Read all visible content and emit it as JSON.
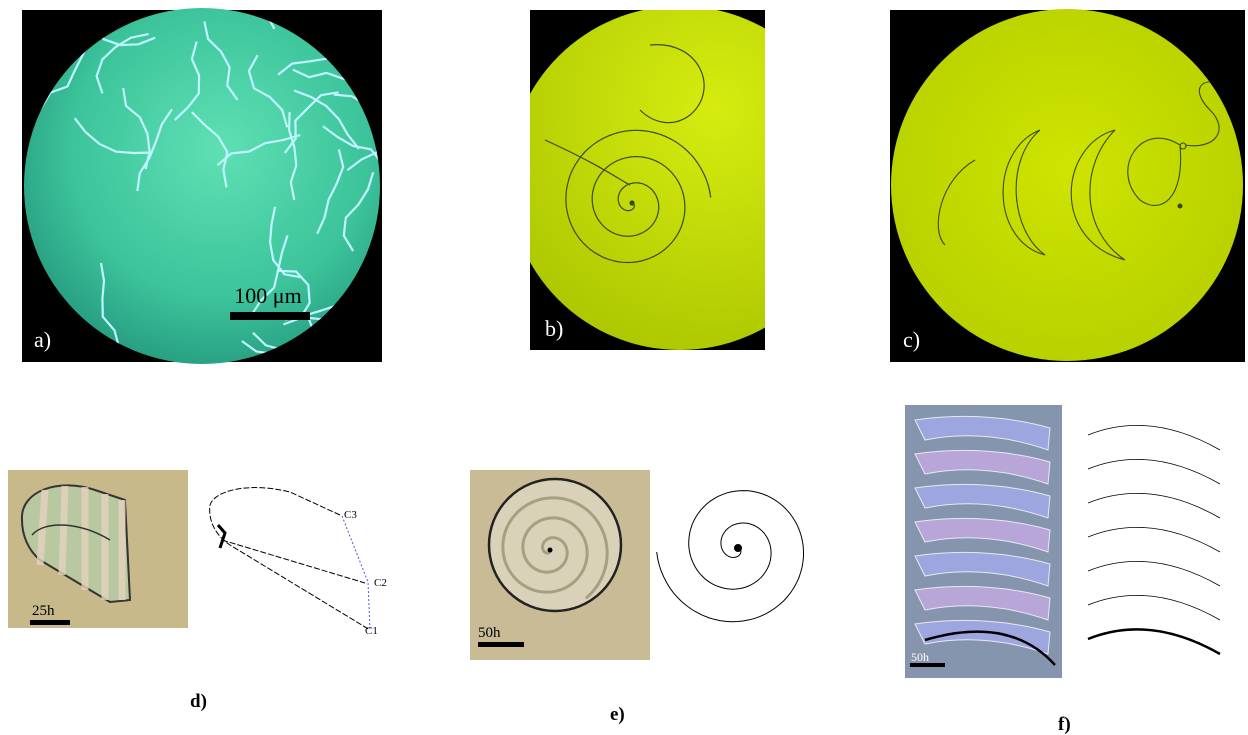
{
  "panels": [
    {
      "label": "a)",
      "scale_bar": "100 μm"
    },
    {
      "label": "b)"
    },
    {
      "label": "c)"
    },
    {
      "label": "d)",
      "scale_bar": "25h",
      "annotations": [
        "C3",
        "C2",
        "C1"
      ]
    },
    {
      "label": "e)",
      "scale_bar": "50h"
    },
    {
      "label": "f)",
      "scale_bar": "50h"
    }
  ]
}
